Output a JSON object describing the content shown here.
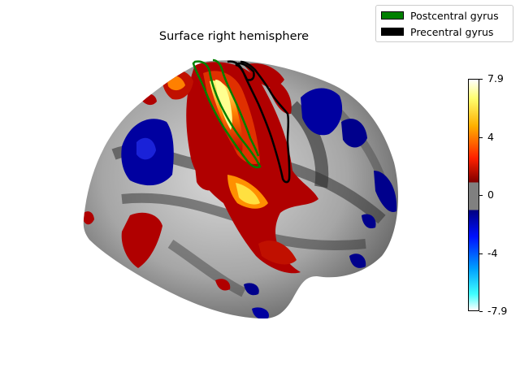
{
  "title": "Surface right hemisphere",
  "legend": {
    "items": [
      {
        "label": "Postcentral gyrus",
        "color": "#008000"
      },
      {
        "label": "Precentral gyrus",
        "color": "#000000"
      }
    ]
  },
  "colorbar": {
    "ticks": [
      "7.9",
      "4",
      "0",
      "-4",
      "-7.9"
    ],
    "colormap": "cold_hot",
    "threshold_color": "#808080"
  }
}
